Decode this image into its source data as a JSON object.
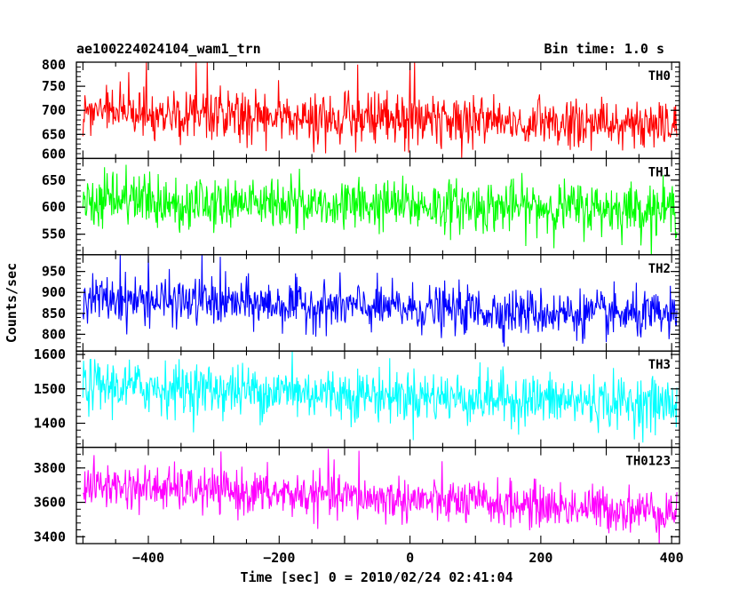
{
  "chart_data": {
    "type": "line",
    "title": "ae100224024104_wam1_trn",
    "subtitle": "Bin time: 1.0 s",
    "xlabel": "Time [sec] 0 = 2010/02/24 02:41:04",
    "ylabel": "Counts/sec",
    "xlim": [
      -510,
      412
    ],
    "x_ticks": [
      -400,
      -200,
      0,
      200,
      400
    ],
    "x_tick_labels": [
      "−400",
      "−200",
      "0",
      "200",
      "400"
    ],
    "bin_time_s": 1.0,
    "grid": false,
    "series": [
      {
        "name": "TH0",
        "color": "#ff0000",
        "ylim": [
          600,
          800
        ],
        "y_ticks": [
          600,
          650,
          700,
          750,
          800
        ],
        "y_tick_labels": [
          "600",
          "650",
          "700",
          "750",
          "800"
        ],
        "mean_start": 695,
        "mean_end": 668,
        "noise_sd": 27,
        "spikes": [
          [
            -403,
            800
          ],
          [
            -327,
            800
          ],
          [
            -310,
            800
          ],
          [
            -80,
            795
          ],
          [
            0,
            800
          ],
          [
            7,
            800
          ]
        ]
      },
      {
        "name": "TH1",
        "color": "#00ff00",
        "ylim": [
          512,
          690
        ],
        "y_ticks": [
          550,
          600,
          650
        ],
        "y_tick_labels": [
          "550",
          "600",
          "650"
        ],
        "mean_start": 612,
        "mean_end": 596,
        "noise_sd": 24,
        "spikes": []
      },
      {
        "name": "TH2",
        "color": "#0000ff",
        "ylim": [
          760,
          990
        ],
        "y_ticks": [
          800,
          850,
          900,
          950
        ],
        "y_tick_labels": [
          "800",
          "850",
          "900",
          "950"
        ],
        "mean_start": 885,
        "mean_end": 842,
        "noise_sd": 28,
        "spikes": [
          [
            -443,
            990
          ],
          [
            -400,
            988
          ],
          [
            -318,
            990
          ],
          [
            -290,
            985
          ]
        ]
      },
      {
        "name": "TH3",
        "color": "#00ffff",
        "ylim": [
          1330,
          1610
        ],
        "y_ticks": [
          1400,
          1500,
          1600
        ],
        "y_tick_labels": [
          "1400",
          "1500",
          "1600"
        ],
        "mean_start": 1510,
        "mean_end": 1455,
        "noise_sd": 38,
        "spikes": [
          [
            -180,
            1608
          ]
        ]
      },
      {
        "name": "TH0123",
        "color": "#ff00ff",
        "ylim": [
          3360,
          3920
        ],
        "y_ticks": [
          3400,
          3600,
          3800
        ],
        "y_tick_labels": [
          "3400",
          "3600",
          "3800"
        ],
        "mean_start": 3700,
        "mean_end": 3545,
        "noise_sd": 65,
        "spikes": [
          [
            -125,
            3910
          ],
          [
            -78,
            3900
          ]
        ]
      }
    ]
  }
}
